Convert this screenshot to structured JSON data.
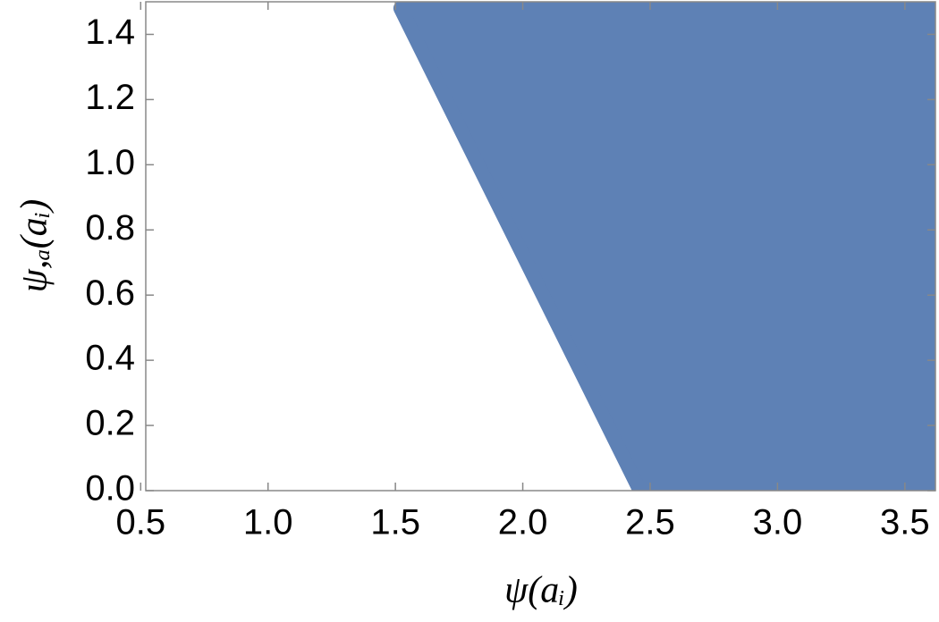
{
  "chart_data": {
    "type": "region",
    "x_label": "ψ(aᵢ)",
    "y_label": "ψ,ₐ(aᵢ)",
    "series": [
      {
        "color": "#5e81b5",
        "x": [
          1.52,
          2.46,
          3.62,
          3.62
        ],
        "values": [
          1.48,
          0,
          0,
          1.48
        ]
      }
    ],
    "xlim": [
      0.52,
      3.62
    ],
    "ylim": [
      0,
      1.5
    ],
    "xticks": [
      0.5,
      {
        "value": 1,
        "label": "1.0"
      },
      1.5,
      {
        "value": 2,
        "label": "2.0"
      },
      2.5,
      {
        "value": 3,
        "label": "3.0"
      },
      3.5
    ],
    "yticks": [
      {
        "value": 0,
        "label": "0.0"
      },
      0.2,
      0.4,
      0.6,
      0.8,
      {
        "value": 1,
        "label": "1.0"
      },
      1.2,
      1.4
    ]
  }
}
